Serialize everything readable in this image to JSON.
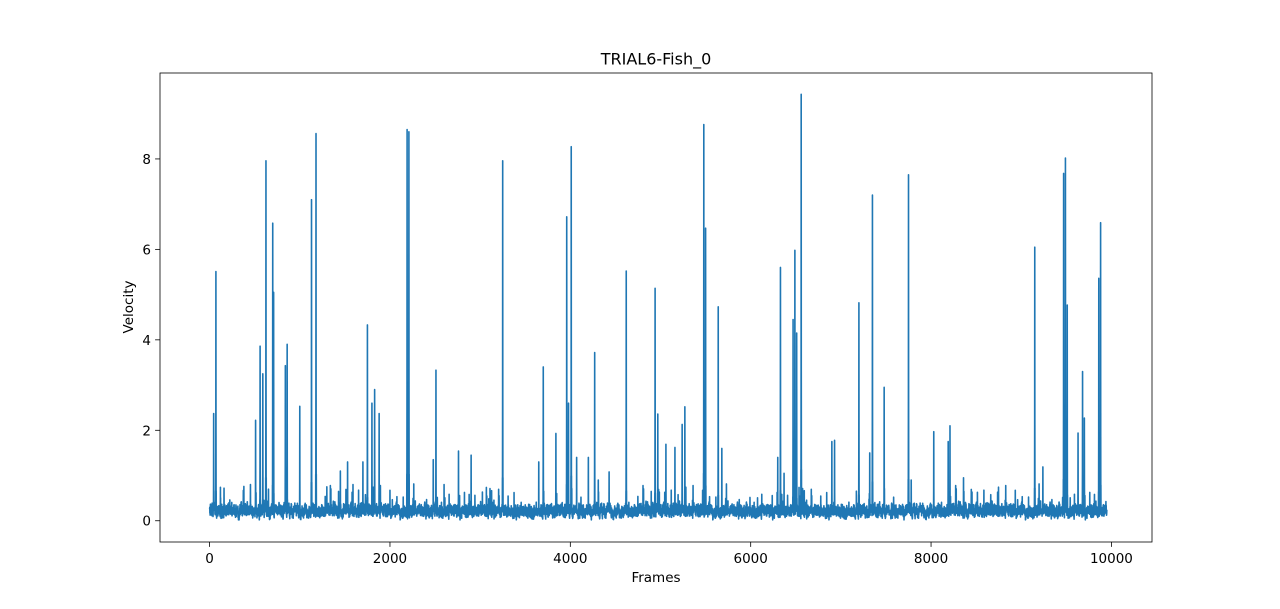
{
  "chart_data": {
    "type": "line",
    "title": "TRIAL6-Fish_0",
    "xlabel": "Frames",
    "ylabel": "Velocity",
    "xlim": [
      -550,
      10450
    ],
    "ylim": [
      -0.47,
      9.9
    ],
    "xticks": [
      0,
      2000,
      4000,
      6000,
      8000,
      10000
    ],
    "xtick_labels": [
      "0",
      "2000",
      "4000",
      "6000",
      "8000",
      "10000"
    ],
    "yticks": [
      0,
      2,
      4,
      6,
      8
    ],
    "ytick_labels": [
      "0",
      "2",
      "4",
      "6",
      "8"
    ],
    "grid": false,
    "legend": "none",
    "frames": 9950,
    "baseline": 0.22,
    "series": [
      {
        "color": "#1f77b4",
        "peaks": [
          [
            45,
            2.37
          ],
          [
            70,
            5.51
          ],
          [
            120,
            0.74
          ],
          [
            160,
            0.72
          ],
          [
            380,
            0.76
          ],
          [
            510,
            2.22
          ],
          [
            560,
            3.86
          ],
          [
            590,
            3.25
          ],
          [
            625,
            7.96
          ],
          [
            700,
            6.58
          ],
          [
            710,
            5.05
          ],
          [
            840,
            3.43
          ],
          [
            860,
            3.9
          ],
          [
            1000,
            2.53
          ],
          [
            1130,
            7.1
          ],
          [
            1180,
            8.56
          ],
          [
            1300,
            0.75
          ],
          [
            1450,
            1.1
          ],
          [
            1530,
            1.3
          ],
          [
            1590,
            0.8
          ],
          [
            1700,
            1.3
          ],
          [
            1750,
            4.33
          ],
          [
            1800,
            2.6
          ],
          [
            1830,
            2.9
          ],
          [
            1880,
            2.37
          ],
          [
            2190,
            8.65
          ],
          [
            2210,
            8.6
          ],
          [
            2480,
            1.35
          ],
          [
            2510,
            3.33
          ],
          [
            2600,
            0.8
          ],
          [
            2760,
            1.54
          ],
          [
            2900,
            1.45
          ],
          [
            3250,
            7.96
          ],
          [
            3650,
            1.3
          ],
          [
            3700,
            3.4
          ],
          [
            3840,
            1.93
          ],
          [
            3960,
            6.72
          ],
          [
            3980,
            2.6
          ],
          [
            4010,
            8.27
          ],
          [
            4070,
            1.4
          ],
          [
            4200,
            1.4
          ],
          [
            4270,
            3.72
          ],
          [
            4310,
            0.9
          ],
          [
            4430,
            1.08
          ],
          [
            4620,
            5.52
          ],
          [
            4940,
            5.14
          ],
          [
            4970,
            2.36
          ],
          [
            5060,
            1.69
          ],
          [
            5160,
            1.62
          ],
          [
            5240,
            2.13
          ],
          [
            5270,
            2.52
          ],
          [
            5480,
            8.76
          ],
          [
            5500,
            6.47
          ],
          [
            5640,
            4.73
          ],
          [
            5680,
            1.6
          ],
          [
            6300,
            1.4
          ],
          [
            6330,
            5.6
          ],
          [
            6370,
            1.05
          ],
          [
            6470,
            4.45
          ],
          [
            6490,
            5.98
          ],
          [
            6510,
            4.15
          ],
          [
            6560,
            9.43
          ],
          [
            6900,
            1.75
          ],
          [
            6930,
            1.78
          ],
          [
            7200,
            4.82
          ],
          [
            7320,
            1.5
          ],
          [
            7350,
            7.2
          ],
          [
            7480,
            2.95
          ],
          [
            7750,
            7.65
          ],
          [
            7780,
            0.9
          ],
          [
            8030,
            1.97
          ],
          [
            8190,
            1.75
          ],
          [
            8210,
            2.1
          ],
          [
            8360,
            0.95
          ],
          [
            9150,
            6.05
          ],
          [
            9240,
            1.19
          ],
          [
            9470,
            7.68
          ],
          [
            9490,
            8.02
          ],
          [
            9510,
            4.77
          ],
          [
            9630,
            1.94
          ],
          [
            9680,
            3.3
          ],
          [
            9700,
            2.27
          ],
          [
            9860,
            5.36
          ],
          [
            9880,
            6.59
          ]
        ]
      }
    ]
  }
}
